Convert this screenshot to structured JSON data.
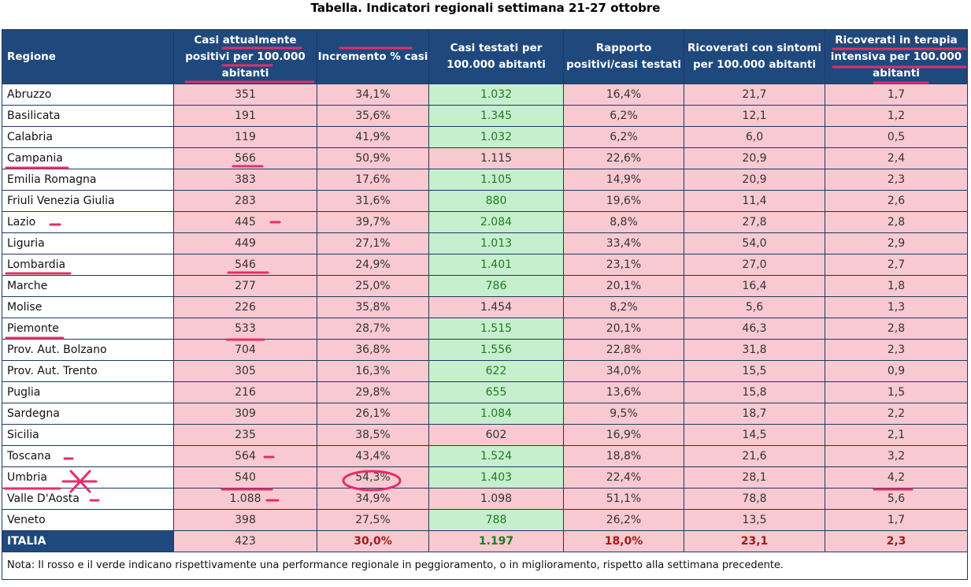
{
  "title": "Tabella. Indicatori regionali settimana 21-27 ottobre",
  "headers": [
    "Regione",
    "Casi attualmente positivi per 100.000 abitanti",
    "Incremento % casi",
    "Casi testati per 100.000 abitanti",
    "Rapporto positivi/casi testati",
    "Ricoverati con sintomi per 100.000 abitanti",
    "Ricoverati in terapia intensiva per 100.000 abitanti"
  ],
  "rows": [
    {
      "region": "Abruzzo",
      "values": [
        "351",
        "34,1%",
        "1.032",
        "16,4%",
        "21,7",
        "1,7"
      ],
      "c3": "green"
    },
    {
      "region": "Basilicata",
      "values": [
        "191",
        "35,6%",
        "1.345",
        "6,2%",
        "12,1",
        "1,2"
      ],
      "c3": "green"
    },
    {
      "region": "Calabria",
      "values": [
        "119",
        "41,9%",
        "1.032",
        "6,2%",
        "6,0",
        "0,5"
      ],
      "c3": "green"
    },
    {
      "region": "Campania",
      "values": [
        "566",
        "50,9%",
        "1.115",
        "22,6%",
        "20,9",
        "2,4"
      ],
      "c3": "red"
    },
    {
      "region": "Emilia Romagna",
      "values": [
        "383",
        "17,6%",
        "1.105",
        "14,9%",
        "20,9",
        "2,3"
      ],
      "c3": "green"
    },
    {
      "region": "Friuli Venezia Giulia",
      "values": [
        "283",
        "31,6%",
        "880",
        "19,6%",
        "11,4",
        "2,6"
      ],
      "c3": "green"
    },
    {
      "region": "Lazio",
      "values": [
        "445",
        "39,7%",
        "2.084",
        "8,8%",
        "27,8",
        "2,8"
      ],
      "c3": "green"
    },
    {
      "region": "Liguria",
      "values": [
        "449",
        "27,1%",
        "1.013",
        "33,4%",
        "54,0",
        "2,9"
      ],
      "c3": "green"
    },
    {
      "region": "Lombardia",
      "values": [
        "546",
        "24,9%",
        "1.401",
        "23,1%",
        "27,0",
        "2,7"
      ],
      "c3": "green"
    },
    {
      "region": "Marche",
      "values": [
        "277",
        "25,0%",
        "786",
        "20,1%",
        "16,4",
        "1,8"
      ],
      "c3": "green"
    },
    {
      "region": "Molise",
      "values": [
        "226",
        "35,8%",
        "1.454",
        "8,2%",
        "5,6",
        "1,3"
      ],
      "c3": "red"
    },
    {
      "region": "Piemonte",
      "values": [
        "533",
        "28,7%",
        "1.515",
        "20,1%",
        "46,3",
        "2,8"
      ],
      "c3": "green"
    },
    {
      "region": "Prov. Aut. Bolzano",
      "values": [
        "704",
        "36,8%",
        "1.556",
        "22,8%",
        "31,8",
        "2,3"
      ],
      "c3": "green"
    },
    {
      "region": "Prov. Aut. Trento",
      "values": [
        "305",
        "16,3%",
        "622",
        "34,0%",
        "15,5",
        "0,9"
      ],
      "c3": "green"
    },
    {
      "region": "Puglia",
      "values": [
        "216",
        "29,8%",
        "655",
        "13,6%",
        "15,8",
        "1,5"
      ],
      "c3": "green"
    },
    {
      "region": "Sardegna",
      "values": [
        "309",
        "26,1%",
        "1.084",
        "9,5%",
        "18,7",
        "2,2"
      ],
      "c3": "green"
    },
    {
      "region": "Sicilia",
      "values": [
        "235",
        "38,5%",
        "602",
        "16,9%",
        "14,5",
        "2,1"
      ],
      "c3": "red"
    },
    {
      "region": "Toscana",
      "values": [
        "564",
        "43,4%",
        "1.524",
        "18,8%",
        "21,6",
        "3,2"
      ],
      "c3": "green"
    },
    {
      "region": "Umbria",
      "values": [
        "540",
        "54,3%",
        "1.403",
        "22,4%",
        "28,1",
        "4,2"
      ],
      "c3": "green"
    },
    {
      "region": "Valle D'Aosta",
      "values": [
        "1.088",
        "34,9%",
        "1.098",
        "51,1%",
        "78,8",
        "5,6"
      ],
      "c3": "red"
    },
    {
      "region": "Veneto",
      "values": [
        "398",
        "27,5%",
        "788",
        "26,2%",
        "13,5",
        "1,7"
      ],
      "c3": "green"
    }
  ],
  "total": {
    "region": "ITALIA",
    "values": [
      "423",
      "30,0%",
      "1.197",
      "18,0%",
      "23,1",
      "2,3"
    ]
  },
  "note": "Nota: Il rosso e il verde indicano rispettivamente una performance regionale in peggioramento, o in miglioramento, rispetto alla settimana precedente.",
  "colors": {
    "header": "#1f497d",
    "red": "#f8c9d1",
    "green": "#c6efce",
    "annotation": "#e0306a"
  }
}
